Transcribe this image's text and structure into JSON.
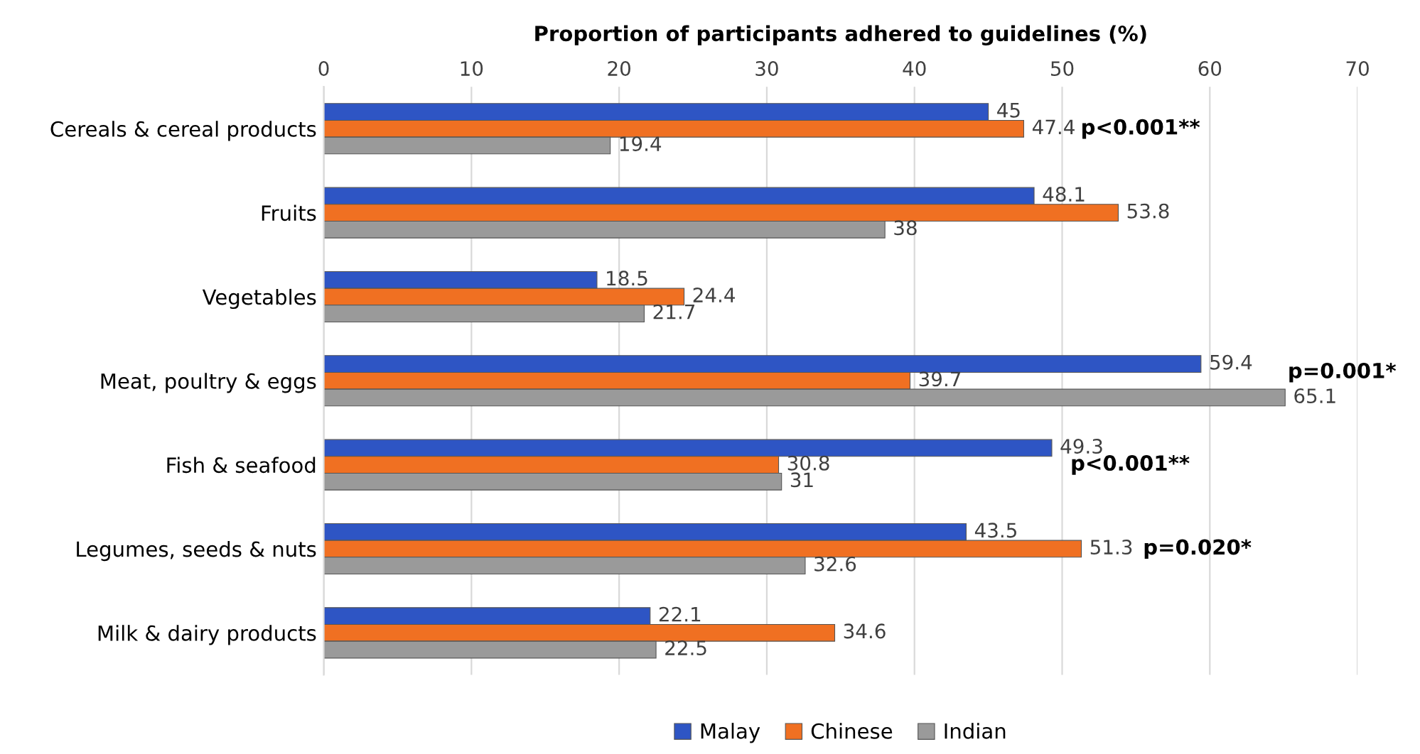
{
  "chart_data": {
    "type": "bar",
    "orientation": "horizontal",
    "xlabel": "Proportion of participants adhered to guidelines (%)",
    "categories": [
      "Cereals & cereal products",
      "Fruits",
      "Vegetables",
      "Meat, poultry & eggs",
      "Fish & seafood",
      "Legumes, seeds & nuts",
      "Milk & dairy products"
    ],
    "series": [
      {
        "name": "Malay",
        "color": "#2e55c4",
        "values": [
          45,
          48.1,
          18.5,
          59.4,
          49.3,
          43.5,
          22.1
        ]
      },
      {
        "name": "Chinese",
        "color": "#f07022",
        "values": [
          47.4,
          53.8,
          24.4,
          39.7,
          30.8,
          51.3,
          34.6
        ]
      },
      {
        "name": "Indian",
        "color": "#9a9a9a",
        "values": [
          19.4,
          38,
          21.7,
          65.1,
          31,
          32.6,
          22.5
        ]
      }
    ],
    "xlim": [
      0,
      70
    ],
    "xticks": [
      0,
      10,
      20,
      30,
      40,
      50,
      60,
      70
    ],
    "grid": "x",
    "data_labels": true,
    "legend": "bottom",
    "annotations": [
      "p<0.001**",
      "p=0.001*",
      "p<0.001**",
      "p=0.020*"
    ]
  }
}
